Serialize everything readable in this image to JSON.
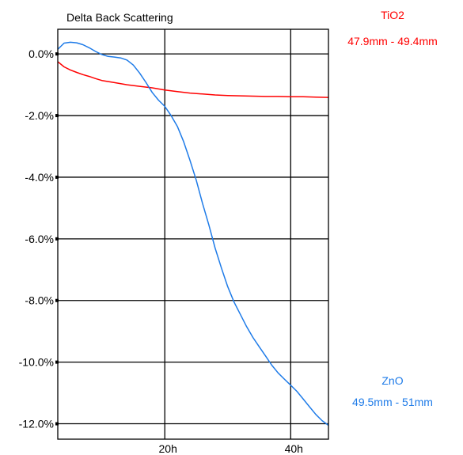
{
  "chart_data": {
    "type": "line",
    "title": "Delta Back Scattering",
    "xlabel": "",
    "ylabel": "",
    "xlim": [
      3,
      46
    ],
    "ylim": [
      -12.5,
      0.8
    ],
    "grid": true,
    "x_ticks": [
      {
        "value": 20,
        "label": "20h"
      },
      {
        "value": 40,
        "label": "40h"
      }
    ],
    "y_ticks": [
      {
        "value": 0,
        "label": "0.0%"
      },
      {
        "value": -2,
        "label": "-2.0%"
      },
      {
        "value": -4,
        "label": "-4.0%"
      },
      {
        "value": -6,
        "label": "-6.0%"
      },
      {
        "value": -8,
        "label": "-8.0%"
      },
      {
        "value": -10,
        "label": "-10.0%"
      },
      {
        "value": -12,
        "label": "-12.0%"
      }
    ],
    "series": [
      {
        "name": "TiO2",
        "range_label": "47.9mm - 49.4mm",
        "color": "#ff0000",
        "x": [
          3,
          4,
          5,
          6,
          7,
          8,
          9,
          10,
          12,
          14,
          16,
          18,
          20,
          22,
          24,
          26,
          28,
          30,
          32,
          34,
          36,
          38,
          40,
          42,
          44,
          46
        ],
        "y": [
          -0.25,
          -0.42,
          -0.52,
          -0.6,
          -0.67,
          -0.73,
          -0.8,
          -0.86,
          -0.93,
          -1.0,
          -1.05,
          -1.1,
          -1.17,
          -1.22,
          -1.27,
          -1.3,
          -1.33,
          -1.35,
          -1.36,
          -1.37,
          -1.38,
          -1.38,
          -1.39,
          -1.39,
          -1.4,
          -1.41
        ]
      },
      {
        "name": "ZnO",
        "range_label": "49.5mm - 51mm",
        "color": "#1e7be8",
        "x": [
          3,
          4,
          5,
          6,
          7,
          8,
          9,
          10,
          11,
          12,
          13,
          14,
          15,
          16,
          17,
          18,
          19,
          20,
          21,
          22,
          23,
          24,
          25,
          26,
          27,
          28,
          29,
          30,
          31,
          32,
          33,
          34,
          35,
          36,
          37,
          38,
          39,
          40,
          41,
          42,
          43,
          44,
          45,
          46
        ],
        "y": [
          0.15,
          0.35,
          0.38,
          0.36,
          0.3,
          0.2,
          0.08,
          -0.02,
          -0.08,
          -0.1,
          -0.13,
          -0.2,
          -0.36,
          -0.62,
          -0.92,
          -1.25,
          -1.5,
          -1.7,
          -2.0,
          -2.35,
          -2.85,
          -3.45,
          -4.1,
          -4.85,
          -5.55,
          -6.3,
          -6.95,
          -7.55,
          -8.05,
          -8.45,
          -8.85,
          -9.2,
          -9.5,
          -9.8,
          -10.1,
          -10.35,
          -10.55,
          -10.75,
          -10.95,
          -11.2,
          -11.45,
          -11.7,
          -11.9,
          -12.05
        ]
      }
    ]
  }
}
